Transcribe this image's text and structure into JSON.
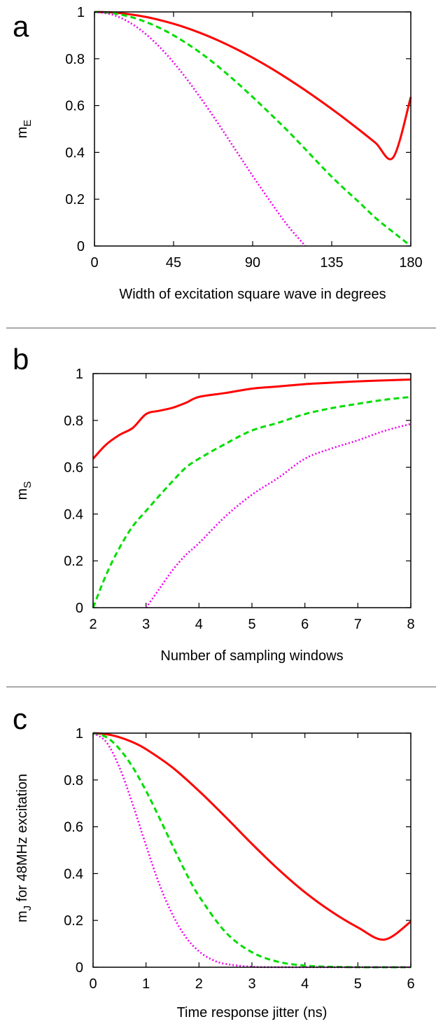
{
  "colors": {
    "red": "#ff0000",
    "green": "#00dd00",
    "magenta": "#ee00ee"
  },
  "chart_data": [
    {
      "id": "a",
      "type": "line",
      "panel_label": "a",
      "xlabel": "Width of excitation square wave in degrees",
      "ylabel": {
        "base": "m",
        "sub": "E",
        "after": ""
      },
      "xlim": [
        0,
        180
      ],
      "ylim": [
        0,
        1
      ],
      "xticks": [
        0,
        45,
        90,
        135,
        180
      ],
      "xtick_labels": [
        "0",
        "45",
        "90",
        "135",
        "180"
      ],
      "yticks": [
        0,
        0.2,
        0.4,
        0.6,
        0.8,
        1
      ],
      "ytick_labels": [
        "0",
        "0.2",
        "0.4",
        "0.6",
        "0.8",
        "1"
      ],
      "grid": false,
      "series": [
        {
          "color": "#ff0000",
          "style": "solid",
          "x": [
            0,
            10,
            20,
            30,
            40,
            50,
            60,
            70,
            80,
            90,
            100,
            110,
            120,
            130,
            140,
            150,
            160,
            170,
            180
          ],
          "y": [
            1,
            0.9975,
            0.9899,
            0.9774,
            0.96,
            0.9378,
            0.9109,
            0.8796,
            0.8441,
            0.8045,
            0.7613,
            0.7146,
            0.6649,
            0.6125,
            0.5577,
            0.5,
            0.4402,
            0.3787,
            0.6366
          ]
        },
        {
          "color": "#00dd00",
          "style": "dashed",
          "x": [
            0,
            10,
            20,
            30,
            40,
            50,
            60,
            70,
            80,
            90,
            100,
            110,
            120,
            130,
            140,
            150,
            160,
            170,
            180
          ],
          "y": [
            1,
            0.9949,
            0.9798,
            0.9549,
            0.9206,
            0.8772,
            0.827,
            0.7691,
            0.705,
            0.6366,
            0.565,
            0.4916,
            0.4135,
            0.334,
            0.2592,
            0.1909,
            0.1195,
            0.059,
            0
          ]
        },
        {
          "color": "#ee00ee",
          "style": "dotted",
          "x": [
            0,
            10,
            20,
            30,
            40,
            50,
            60,
            70,
            80,
            90,
            100,
            110,
            120
          ],
          "y": [
            1,
            0.9886,
            0.9549,
            0.9003,
            0.827,
            0.7378,
            0.6366,
            0.5274,
            0.4135,
            0.3001,
            0.191,
            0.087,
            0
          ]
        }
      ]
    },
    {
      "id": "b",
      "type": "line",
      "panel_label": "b",
      "xlabel": "Number of sampling windows",
      "ylabel": {
        "base": "m",
        "sub": "S",
        "after": ""
      },
      "xlim": [
        2,
        8
      ],
      "ylim": [
        0,
        1
      ],
      "xticks": [
        2,
        3,
        4,
        5,
        6,
        7,
        8
      ],
      "xtick_labels": [
        "2",
        "3",
        "4",
        "5",
        "6",
        "7",
        "8"
      ],
      "yticks": [
        0,
        0.2,
        0.4,
        0.6,
        0.8,
        1
      ],
      "ytick_labels": [
        "0",
        "0.2",
        "0.4",
        "0.6",
        "0.8",
        "1"
      ],
      "grid": false,
      "series": [
        {
          "color": "#ff0000",
          "style": "solid",
          "x": [
            2,
            2.25,
            2.5,
            2.75,
            3,
            3.25,
            3.5,
            3.75,
            4,
            4.5,
            5,
            5.5,
            6,
            6.5,
            7,
            7.5,
            8
          ],
          "y": [
            0.6366,
            0.6974,
            0.7379,
            0.768,
            0.827,
            0.841,
            0.854,
            0.875,
            0.9003,
            0.917,
            0.9355,
            0.945,
            0.9549,
            0.961,
            0.9667,
            0.971,
            0.9745
          ]
        },
        {
          "color": "#00dd00",
          "style": "dashed",
          "x": [
            2,
            2.25,
            2.5,
            2.75,
            3,
            3.25,
            3.5,
            3.75,
            4,
            4.5,
            5,
            5.5,
            6,
            6.5,
            7,
            7.5,
            8
          ],
          "y": [
            0,
            0.142,
            0.256,
            0.348,
            0.4135,
            0.478,
            0.54,
            0.598,
            0.6366,
            0.7,
            0.7568,
            0.79,
            0.827,
            0.852,
            0.871,
            0.888,
            0.9003
          ]
        },
        {
          "color": "#ee00ee",
          "style": "dotted",
          "x": [
            3,
            3.25,
            3.5,
            3.75,
            4,
            4.5,
            5,
            5.5,
            6,
            6.5,
            7,
            7.5,
            8
          ],
          "y": [
            0,
            0.08,
            0.16,
            0.225,
            0.2757,
            0.39,
            0.4825,
            0.555,
            0.6366,
            0.68,
            0.715,
            0.755,
            0.785
          ]
        }
      ]
    },
    {
      "id": "c",
      "type": "line",
      "panel_label": "c",
      "xlabel": "Time response jitter (ns)",
      "ylabel": {
        "base": "m",
        "sub": "J",
        "after": " for 48MHz excitation"
      },
      "xlim": [
        0,
        6
      ],
      "ylim": [
        0,
        1
      ],
      "xticks": [
        0,
        1,
        2,
        3,
        4,
        5,
        6
      ],
      "xtick_labels": [
        "0",
        "1",
        "2",
        "3",
        "4",
        "5",
        "6"
      ],
      "yticks": [
        0,
        0.2,
        0.4,
        0.6,
        0.8,
        1
      ],
      "ytick_labels": [
        "0",
        "0.2",
        "0.4",
        "0.6",
        "0.8",
        "1"
      ],
      "grid": false,
      "series": [
        {
          "color": "#ff0000",
          "style": "solid",
          "x": [
            0,
            0.25,
            0.5,
            0.75,
            1,
            1.5,
            2,
            2.5,
            3,
            3.5,
            4,
            4.5,
            5,
            5.5,
            6
          ],
          "y": [
            1,
            0.9956,
            0.9824,
            0.961,
            0.9315,
            0.853,
            0.753,
            0.642,
            0.527,
            0.418,
            0.32,
            0.238,
            0.17,
            0.118,
            0.195
          ]
        },
        {
          "color": "#00dd00",
          "style": "dashed",
          "x": [
            0,
            0.25,
            0.5,
            0.75,
            1,
            1.25,
            1.5,
            1.75,
            2,
            2.5,
            3,
            3.5,
            4,
            4.5,
            5,
            5.5,
            6
          ],
          "y": [
            1,
            0.983,
            0.9324,
            0.854,
            0.753,
            0.639,
            0.52,
            0.405,
            0.304,
            0.15,
            0.064,
            0.023,
            0.0071,
            0.0019,
            0.0004,
            0.0001,
            0
          ]
        },
        {
          "color": "#ee00ee",
          "style": "dotted",
          "x": [
            0,
            0.25,
            0.5,
            0.75,
            1,
            1.25,
            1.5,
            1.75,
            2,
            2.25,
            2.5,
            3,
            3.5,
            4,
            4.5,
            5,
            6
          ],
          "y": [
            1,
            0.962,
            0.853,
            0.695,
            0.52,
            0.355,
            0.225,
            0.129,
            0.068,
            0.032,
            0.014,
            0.002,
            0.0002,
            0,
            0,
            0,
            0
          ]
        }
      ]
    }
  ]
}
